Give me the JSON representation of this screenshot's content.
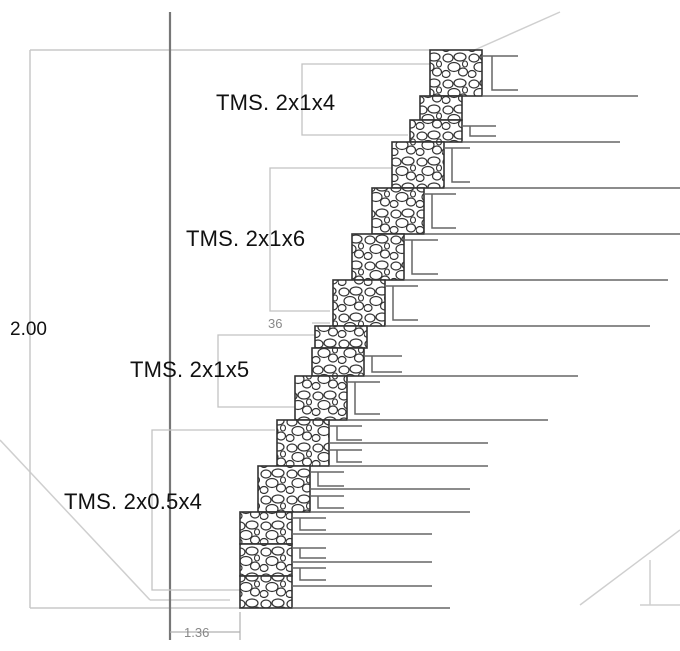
{
  "labels": {
    "tms_1": "TMS. 2x1x4",
    "tms_2": "TMS. 2x1x6",
    "tms_3": "TMS. 2x1x5",
    "tms_4": "TMS. 2x0.5x4"
  },
  "dimensions": {
    "height": "2.00",
    "offset": "36",
    "base_width": "1.36"
  },
  "colors": {
    "line": "#777777",
    "light_line": "#bdbdbd",
    "dark": "#444444"
  }
}
